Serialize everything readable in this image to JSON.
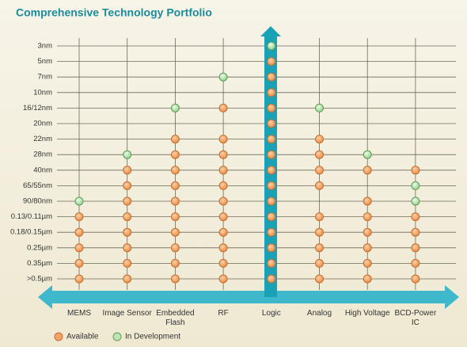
{
  "title": "Comprehensive Technology Portfolio",
  "rows": [
    "3nm",
    "5nm",
    "7nm",
    "10nm",
    "16/12nm",
    "20nm",
    "22nm",
    "28nm",
    "40nm",
    "65/55nm",
    "90/80nm",
    "0.13/0.11µm",
    "0.18/0.15µm",
    "0.25µm",
    "0.35µm",
    ">0.5µm"
  ],
  "columns": [
    "MEMS",
    "Image Sensor",
    "Embedded Flash",
    "RF",
    "Logic",
    "Analog",
    "High Voltage",
    "BCD-Power IC"
  ],
  "cells": [
    [
      null,
      null,
      null,
      null,
      1,
      null,
      null,
      null
    ],
    [
      null,
      null,
      null,
      null,
      0,
      null,
      null,
      null
    ],
    [
      null,
      null,
      null,
      1,
      0,
      null,
      null,
      null
    ],
    [
      null,
      null,
      null,
      null,
      0,
      null,
      null,
      null
    ],
    [
      null,
      null,
      1,
      0,
      0,
      1,
      null,
      null
    ],
    [
      null,
      null,
      null,
      null,
      0,
      null,
      null,
      null
    ],
    [
      null,
      null,
      0,
      0,
      0,
      0,
      null,
      null
    ],
    [
      null,
      1,
      0,
      0,
      0,
      0,
      1,
      null
    ],
    [
      null,
      0,
      0,
      0,
      0,
      0,
      0,
      0
    ],
    [
      null,
      0,
      0,
      0,
      0,
      0,
      null,
      1
    ],
    [
      1,
      0,
      0,
      0,
      0,
      null,
      0,
      1
    ],
    [
      0,
      0,
      0,
      0,
      0,
      0,
      0,
      0
    ],
    [
      0,
      0,
      0,
      0,
      0,
      0,
      0,
      0
    ],
    [
      0,
      0,
      0,
      0,
      0,
      0,
      0,
      0
    ],
    [
      0,
      0,
      0,
      0,
      0,
      0,
      0,
      0
    ],
    [
      0,
      0,
      0,
      0,
      0,
      0,
      0,
      0
    ]
  ],
  "legend": {
    "items": [
      {
        "label": "Available",
        "color": "#f2a266"
      },
      {
        "label": "In Development",
        "color": "#bfe3b5"
      }
    ]
  }
}
